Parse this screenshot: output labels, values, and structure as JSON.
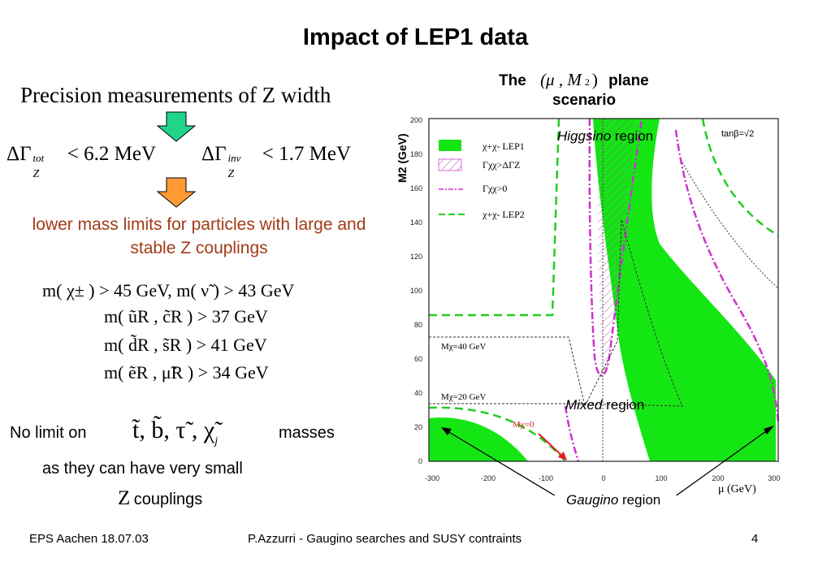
{
  "title": "Impact of LEP1 data",
  "left": {
    "heading": "Precision measurements of Z width",
    "constraint_tot": {
      "symbol": "ΔΓ",
      "sup": "tot",
      "sub": "Z",
      "relation": "< 6.2 MeV"
    },
    "constraint_inv": {
      "symbol": "ΔΓ",
      "sup": "inv",
      "sub": "Z",
      "relation": "< 1.7 MeV"
    },
    "lower_limits_text": "lower mass limits for particles with large and stable Z couplings",
    "limits": [
      "m( χ± ) > 45 GeV,   m( ν̃ ) > 43 GeV",
      "m( ũR , c̃R ) > 37 GeV",
      "m( d̃R , s̃R ) > 41 GeV",
      "m( ẽR , μ̃R ) > 34 GeV"
    ],
    "no_limit_prefix": "No limit on",
    "no_limit_particles": "t̃, b̃, τ̃ , χ̃",
    "no_limit_particles_sub": "j",
    "no_limit_suffix": "masses",
    "small_coupling_line1": "as they can have very small",
    "small_coupling_z": "Z",
    "small_coupling_line2": "couplings"
  },
  "plot": {
    "plane_prefix": "The",
    "plane_math": "(μ , M",
    "plane_math_sub": "2",
    "plane_math_close": ")",
    "plane_suffix": "plane",
    "plane_line2": "scenario",
    "y_axis_label": "M2 (GeV)",
    "x_axis_label": "μ (GeV)",
    "x_ticks": [
      "-300",
      "-200",
      "-100",
      "0",
      "100",
      "200",
      "300"
    ],
    "y_ticks": [
      "0",
      "20",
      "40",
      "60",
      "80",
      "100",
      "120",
      "140",
      "160",
      "180",
      "200"
    ],
    "tanbeta": "tanβ=√2",
    "legend": [
      {
        "label": "χ+χ- LEP1"
      },
      {
        "label": "Γχχ>ΔΓZ"
      },
      {
        "label": "Γχχ>0"
      },
      {
        "label": "χ+χ- LEP2"
      }
    ],
    "mchi40": "Mχ=40 GeV",
    "mchi20": "Mχ=20 GeV",
    "mchi0": "Mχ=0",
    "higgsino_italic": "Higgsino",
    "higgsino_rest": " region",
    "mixed_italic": "Mixed",
    "mixed_rest": " region",
    "gaugino_italic": "Gaugino",
    "gaugino_rest": " region",
    "colors": {
      "green": "#14e614",
      "magenta": "#cc33cc",
      "arrow": "#000000",
      "red": "#e02020"
    }
  },
  "footer": {
    "left": "EPS Aachen  18.07.03",
    "center": "P.Azzurri - Gaugino searches and SUSY contraints",
    "page": "4"
  }
}
